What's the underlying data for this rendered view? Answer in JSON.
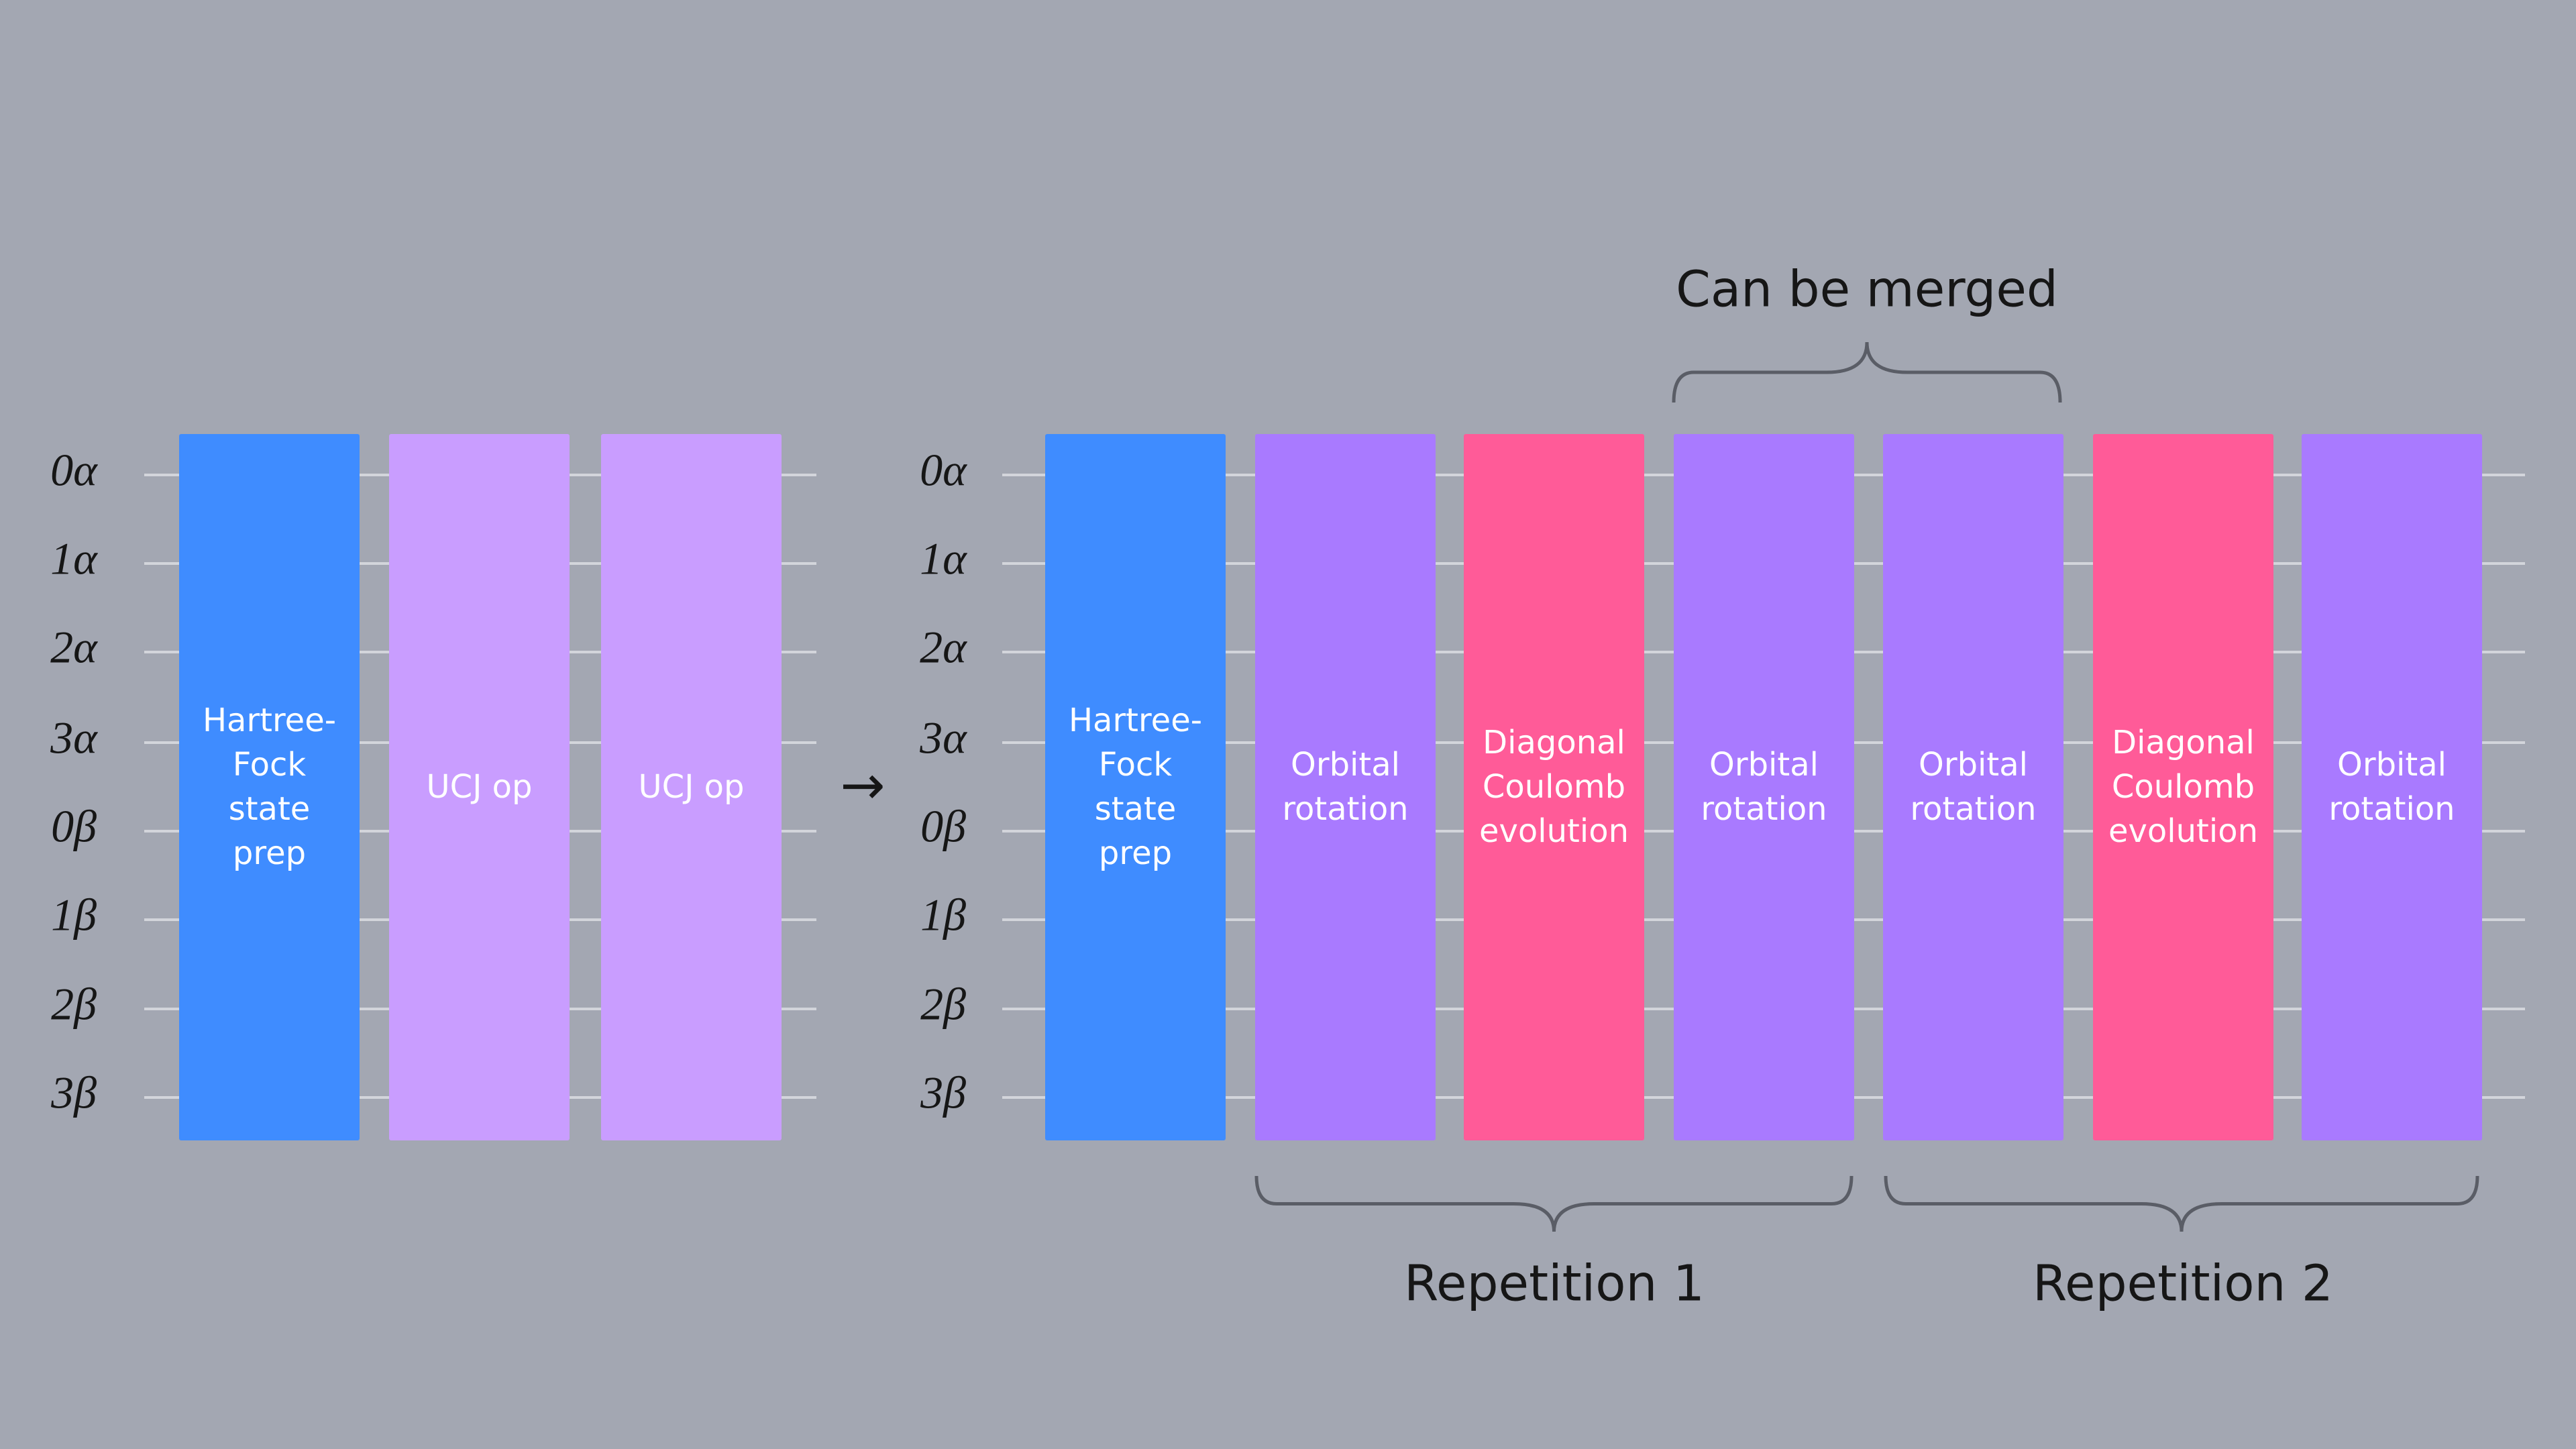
{
  "left_circuit": {
    "qubits": [
      "0α",
      "1α",
      "2α",
      "3α",
      "0β",
      "1β",
      "2β",
      "3β"
    ],
    "gates": [
      {
        "label": [
          "Hartree-",
          "Fock",
          "state",
          "prep"
        ],
        "color": "#3f8cff"
      },
      {
        "label": [
          "UCJ op"
        ],
        "color": "#c99dff"
      },
      {
        "label": [
          "UCJ op"
        ],
        "color": "#c99dff"
      }
    ]
  },
  "right_circuit": {
    "qubits": [
      "0α",
      "1α",
      "2α",
      "3α",
      "0β",
      "1β",
      "2β",
      "3β"
    ],
    "gates": [
      {
        "label": [
          "Hartree-",
          "Fock",
          "state",
          "prep"
        ],
        "color": "#3f8cff"
      },
      {
        "label": [
          "Orbital",
          "rotation"
        ],
        "color": "#a97aff"
      },
      {
        "label": [
          "Diagonal",
          "Coulomb",
          "evolution"
        ],
        "color": "#ff5b98"
      },
      {
        "label": [
          "Orbital",
          "rotation"
        ],
        "color": "#a97aff"
      },
      {
        "label": [
          "Orbital",
          "rotation"
        ],
        "color": "#a97aff"
      },
      {
        "label": [
          "Diagonal",
          "Coulomb",
          "evolution"
        ],
        "color": "#ff5b98"
      },
      {
        "label": [
          "Orbital",
          "rotation"
        ],
        "color": "#a97aff"
      }
    ]
  },
  "annotations": {
    "merge": "Can be merged",
    "repetition_1": "Repetition 1",
    "repetition_2": "Repetition 2"
  }
}
